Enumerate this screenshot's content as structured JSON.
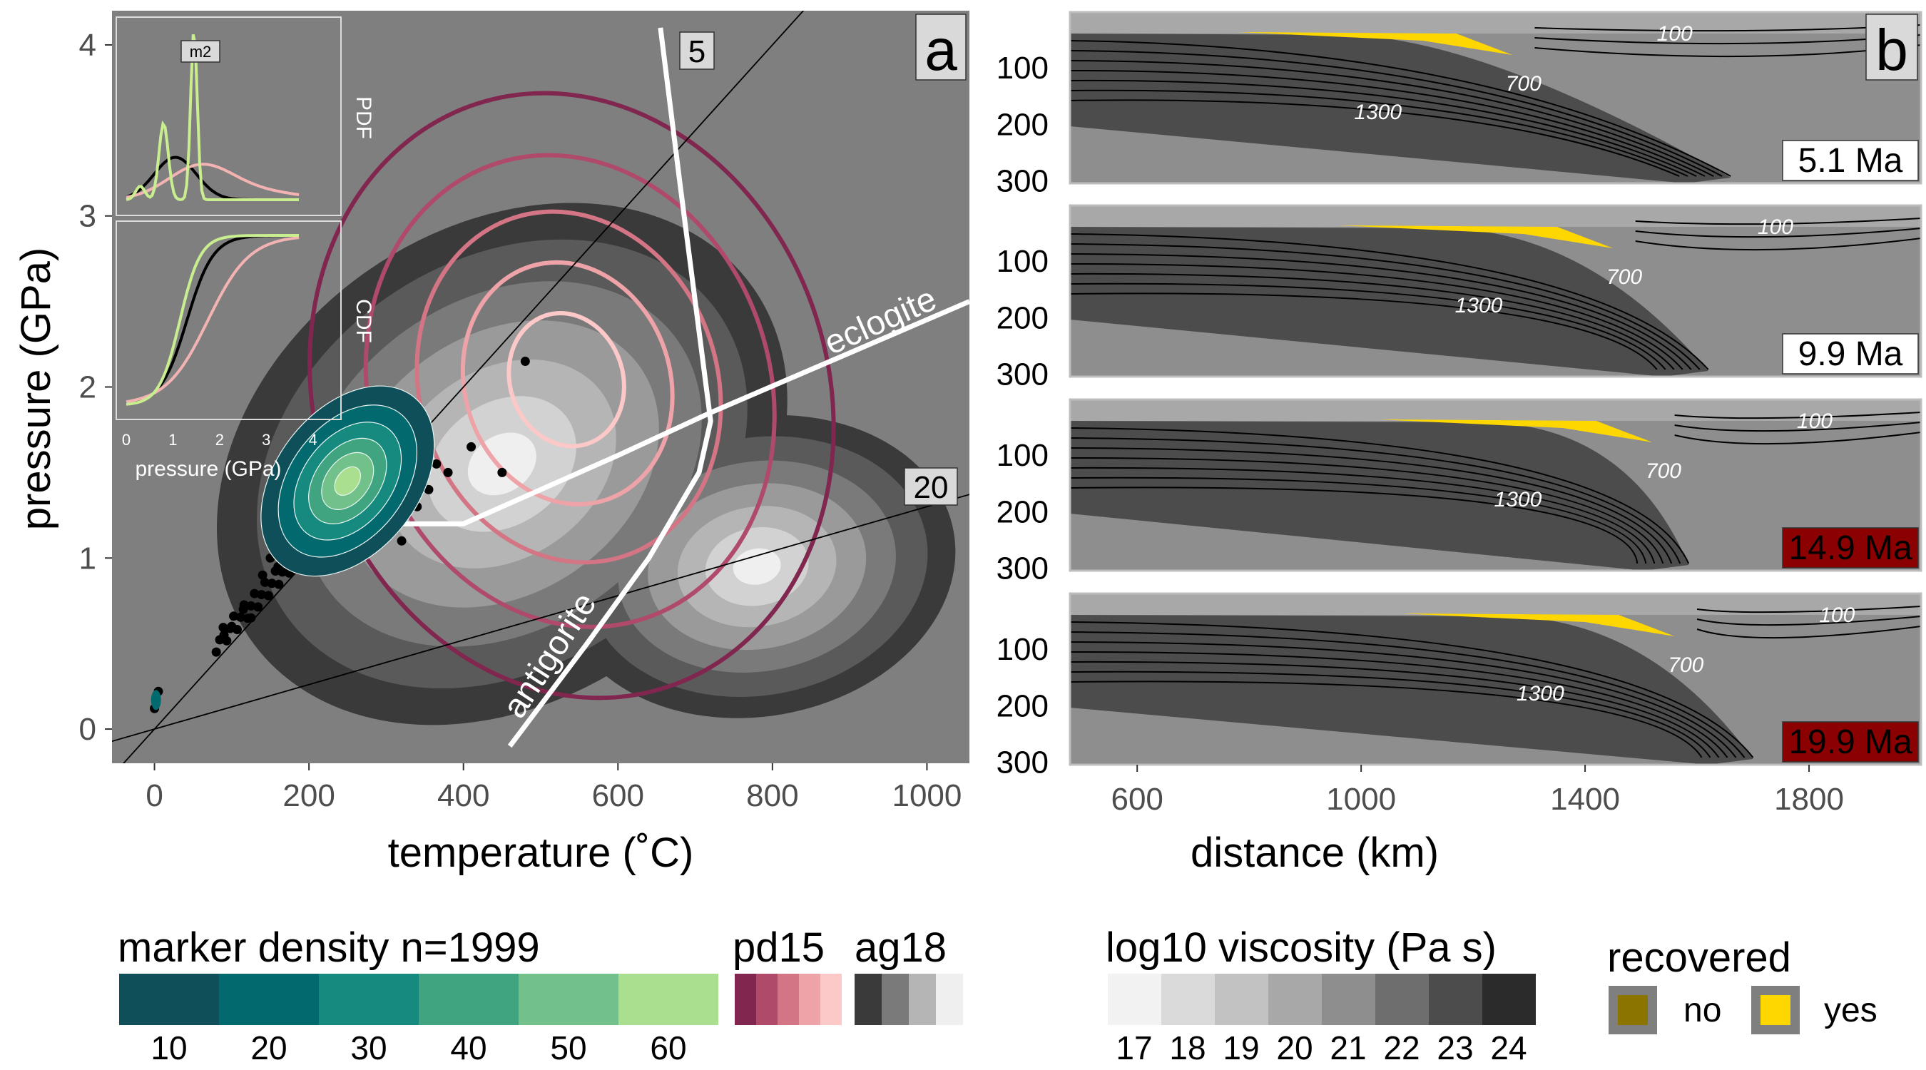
{
  "chart_data": [
    {
      "type": "density-contour",
      "panel_label": "a",
      "xlabel": "temperature (˚C)",
      "ylabel": "pressure (GPa)",
      "xlim": [
        -55,
        1055
      ],
      "ylim": [
        -0.2,
        4.2
      ],
      "x_ticks": [
        "0",
        "200",
        "400",
        "600",
        "800",
        "1000"
      ],
      "y_ticks": [
        "0",
        "1",
        "2",
        "3",
        "4"
      ],
      "geotherms": [
        {
          "label": "5",
          "gpa_per_100C": 0.5
        },
        {
          "label": "20",
          "gpa_per_100C": 0.13
        }
      ],
      "phase_boundaries": [
        {
          "name": "antigorite",
          "points": [
            [
              460,
              -0.1
            ],
            [
              560,
              0.5
            ],
            [
              640,
              1.0
            ],
            [
              705,
              1.5
            ],
            [
              720,
              1.8
            ],
            [
              680,
              3.2
            ],
            [
              655,
              4.1
            ]
          ]
        },
        {
          "name": "eclogite",
          "points": [
            [
              205,
              1.2
            ],
            [
              400,
              1.2
            ],
            [
              600,
              1.6
            ],
            [
              720,
              1.85
            ],
            [
              1055,
              2.5
            ]
          ]
        }
      ],
      "markers": [
        [
          0,
          0.12
        ],
        [
          2,
          0.18
        ],
        [
          5,
          0.22
        ],
        [
          90,
          0.55
        ],
        [
          100,
          0.6
        ],
        [
          115,
          0.7
        ],
        [
          125,
          0.65
        ],
        [
          140,
          0.9
        ],
        [
          150,
          1.0
        ],
        [
          160,
          0.95
        ],
        [
          175,
          1.3
        ],
        [
          185,
          1.2
        ],
        [
          200,
          1.45
        ],
        [
          215,
          1.55
        ],
        [
          225,
          1.6
        ],
        [
          230,
          1.5
        ],
        [
          240,
          1.65
        ],
        [
          255,
          1.7
        ],
        [
          260,
          1.55
        ],
        [
          270,
          1.75
        ],
        [
          280,
          1.8
        ],
        [
          295,
          1.72
        ],
        [
          305,
          1.82
        ],
        [
          320,
          1.6
        ],
        [
          330,
          1.5
        ],
        [
          345,
          1.45
        ],
        [
          355,
          1.4
        ],
        [
          365,
          1.55
        ],
        [
          380,
          1.5
        ],
        [
          410,
          1.65
        ],
        [
          480,
          2.15
        ],
        [
          300,
          1.15
        ],
        [
          310,
          1.2
        ],
        [
          320,
          1.1
        ],
        [
          340,
          1.3
        ],
        [
          290,
          1.25
        ],
        [
          450,
          1.5
        ],
        [
          200,
          1.1
        ],
        [
          230,
          1.3
        ]
      ],
      "density_levels": [
        10,
        20,
        30,
        40,
        50,
        60
      ],
      "density_legend_title": "marker density n=1999",
      "pd15_legend_title": "pd15",
      "ag18_legend_title": "ag18",
      "inset": {
        "top_label": "PDF",
        "bottom_label": "CDF",
        "xlabel": "pressure (GPa)",
        "x_ticks": [
          "0",
          "1",
          "2",
          "3",
          "4"
        ],
        "peak_label": "m2"
      }
    },
    {
      "type": "section-maps",
      "panel_label": "b",
      "xlabel": "distance (km)",
      "x_ticks": [
        "600",
        "1000",
        "1400",
        "1800"
      ],
      "xlim": [
        480,
        2000
      ],
      "depth_ticks": [
        "100",
        "200",
        "300"
      ],
      "isotherm_labels": [
        "100",
        "700",
        "1300"
      ],
      "panels": [
        {
          "time_label": "5.1 Ma",
          "highlight": false
        },
        {
          "time_label": "9.9 Ma",
          "highlight": false
        },
        {
          "time_label": "14.9 Ma",
          "highlight": true
        },
        {
          "time_label": "19.9 Ma",
          "highlight": true
        }
      ],
      "viscosity_legend_title": "log10 viscosity (Pa s)",
      "viscosity_levels": [
        "17",
        "18",
        "19",
        "20",
        "21",
        "22",
        "23",
        "24"
      ],
      "recovered_legend_title": "recovered",
      "recovered_entries": [
        "no",
        "yes"
      ]
    }
  ],
  "colors": {
    "panel_bg": "#7f7f7f",
    "density_scale": [
      "#0f4f5a",
      "#026a6f",
      "#168a7e",
      "#3fa47f",
      "#72c08a",
      "#aadf8f"
    ],
    "pd15_scale": [
      "#81274f",
      "#b04a6b",
      "#d37585",
      "#eea3a9",
      "#fcc8c8"
    ],
    "ag18_scale": [
      "#3a3a3a",
      "#7a7a7a",
      "#b5b5b5",
      "#efefef"
    ],
    "viscosity_scale": [
      "#f2f2f2",
      "#dadada",
      "#c2c2c2",
      "#a8a8a8",
      "#8e8e8e",
      "#6e6e6e",
      "#4c4c4c",
      "#2b2b2b"
    ],
    "recovered_no": "#8b7500",
    "recovered_yes": "#ffd700",
    "highlight_box": "#8b0000"
  }
}
